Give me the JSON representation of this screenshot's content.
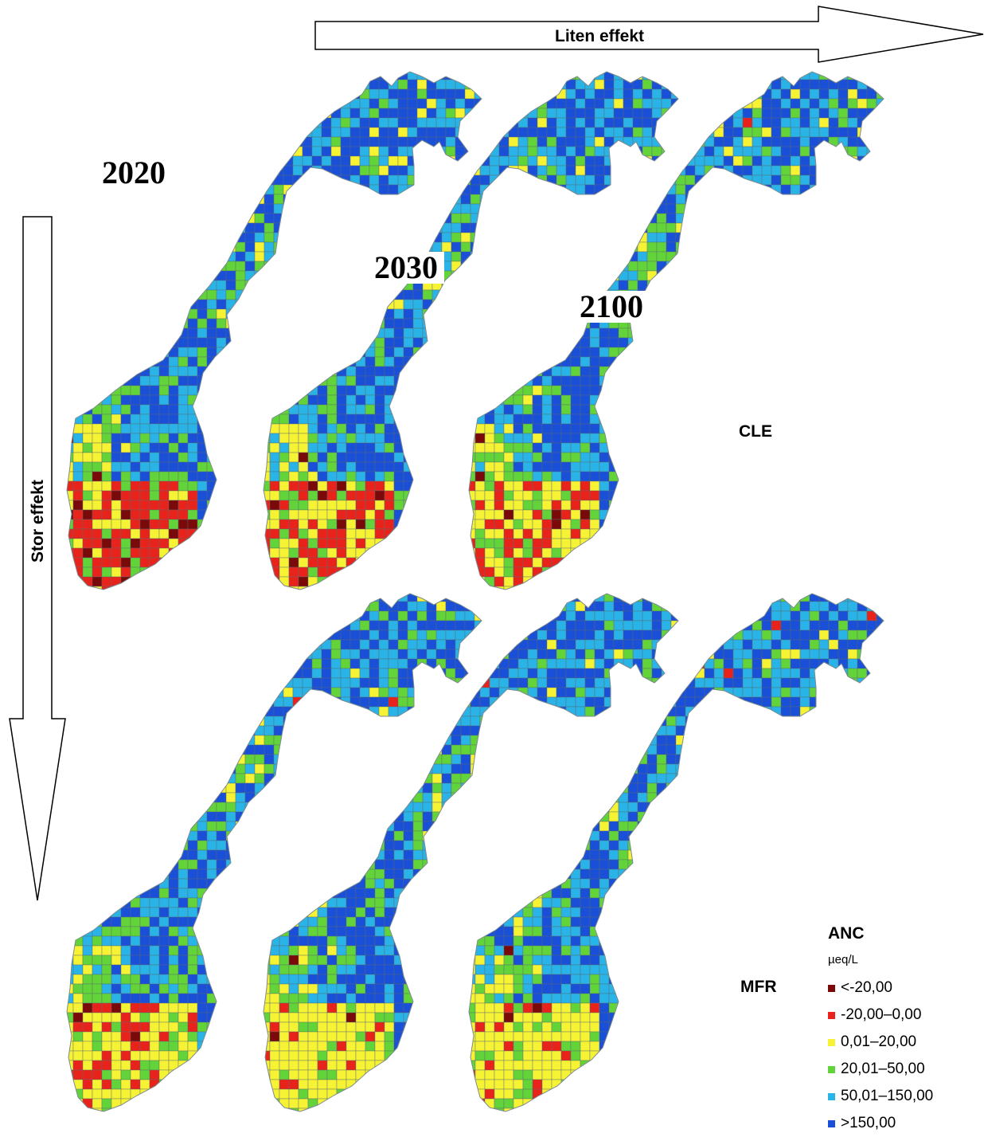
{
  "arrows": {
    "horizontal_label": "Liten effekt",
    "vertical_label": "Stor effekt"
  },
  "years": [
    "2020",
    "2030",
    "2100"
  ],
  "scenarios": [
    "CLE",
    "MFR"
  ],
  "legend": {
    "title": "ANC",
    "unit": "µeq/L",
    "items": [
      {
        "label": "<-20,00",
        "color": "#7a0a0a"
      },
      {
        "label": "-20,00–0,00",
        "color": "#e8231b"
      },
      {
        "label": "0,01–20,00",
        "color": "#f6f234"
      },
      {
        "label": "20,01–50,00",
        "color": "#62d43a"
      },
      {
        "label": "50,01–150,00",
        "color": "#29b3e6"
      },
      {
        "label": ">150,00",
        "color": "#1a4fd8"
      }
    ]
  },
  "maps": [
    {
      "scenario": "CLE",
      "year": "2020",
      "south_red_share": 0.55,
      "south_darkred_share": 0.1
    },
    {
      "scenario": "CLE",
      "year": "2030",
      "south_red_share": 0.45,
      "south_darkred_share": 0.06
    },
    {
      "scenario": "CLE",
      "year": "2100",
      "south_red_share": 0.35,
      "south_darkred_share": 0.05
    },
    {
      "scenario": "MFR",
      "year": "2020",
      "south_red_share": 0.25,
      "south_darkred_share": 0.05
    },
    {
      "scenario": "MFR",
      "year": "2030",
      "south_red_share": 0.1,
      "south_darkred_share": 0.03
    },
    {
      "scenario": "MFR",
      "year": "2100",
      "south_red_share": 0.12,
      "south_darkred_share": 0.02
    }
  ]
}
